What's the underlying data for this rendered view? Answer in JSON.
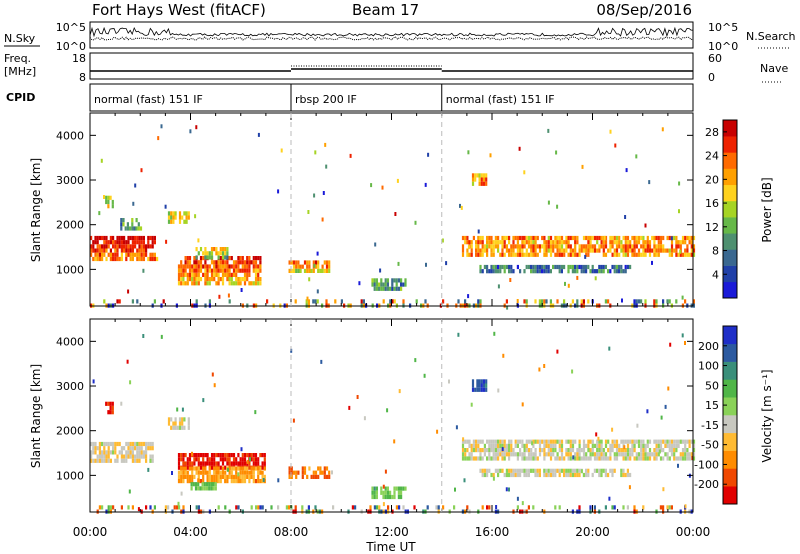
{
  "header": {
    "station": "Fort Hays West (fitACF)",
    "beam": "Beam 17",
    "date": "08/Sep/2016"
  },
  "noise_panel": {
    "left_label": "N.Sky",
    "right_label": "N.Search",
    "left_ticks": [
      "10^5",
      "10^0"
    ],
    "right_ticks": [
      "10^5",
      "10^0"
    ]
  },
  "freq_panel": {
    "left_label_1": "Freq.",
    "left_label_2": "[MHz]",
    "right_label": "Nave",
    "left_ticks": [
      "18",
      "8"
    ],
    "right_ticks": [
      "60",
      "0"
    ]
  },
  "cpid_panel": {
    "label": "CPID",
    "segments": [
      {
        "name": "normal (fast) 151 IF",
        "start_hour": 0,
        "end_hour": 8
      },
      {
        "name": "rbsp 200 IF",
        "start_hour": 8,
        "end_hour": 14
      },
      {
        "name": "normal (fast) 151 IF",
        "start_hour": 14,
        "end_hour": 24
      }
    ]
  },
  "chart_data": [
    {
      "type": "heatmap",
      "name": "power",
      "ylabel": "Slant Range [km]",
      "xlabel": "",
      "ylim": [
        180,
        4500
      ],
      "yticks": [
        "1000",
        "2000",
        "3000",
        "4000"
      ],
      "xlim_hours": [
        0,
        24
      ],
      "colorbar_label": "Power [dB]",
      "colorbar_ticks": [
        "4",
        "8",
        "12",
        "16",
        "20",
        "24",
        "28"
      ],
      "colorbar_range": [
        0,
        30
      ],
      "colors": [
        "#1a1ad8",
        "#2040a8",
        "#3a6890",
        "#4e9070",
        "#66b848",
        "#a6d424",
        "#ffd21e",
        "#ffa000",
        "#ff6a00",
        "#ee2200",
        "#c80000"
      ],
      "echo_regions": [
        {
          "t0": 0.0,
          "t1": 2.7,
          "r0": 1250,
          "r1": 1750,
          "level": 0.85
        },
        {
          "t0": 0.6,
          "t1": 0.9,
          "r0": 2450,
          "r1": 2650,
          "level": 0.55
        },
        {
          "t0": 1.2,
          "t1": 2.0,
          "r0": 1950,
          "r1": 2150,
          "level": 0.35
        },
        {
          "t0": 3.1,
          "t1": 3.9,
          "r0": 2050,
          "r1": 2300,
          "level": 0.55
        },
        {
          "t0": 3.5,
          "t1": 6.8,
          "r0": 700,
          "r1": 1300,
          "level": 0.75
        },
        {
          "t0": 4.2,
          "t1": 5.5,
          "r0": 1300,
          "r1": 1500,
          "level": 0.5
        },
        {
          "t0": 7.9,
          "t1": 9.5,
          "r0": 950,
          "r1": 1200,
          "level": 0.65
        },
        {
          "t0": 11.2,
          "t1": 12.6,
          "r0": 600,
          "r1": 800,
          "level": 0.3
        },
        {
          "t0": 15.2,
          "t1": 15.8,
          "r0": 2950,
          "r1": 3150,
          "level": 0.7
        },
        {
          "t0": 14.8,
          "t1": 24.0,
          "r0": 1350,
          "r1": 1750,
          "level": 0.7
        },
        {
          "t0": 15.5,
          "t1": 21.5,
          "r0": 1000,
          "r1": 1100,
          "level": 0.25
        },
        {
          "t0": 0.0,
          "t1": 24.0,
          "r0": 190,
          "r1": 330,
          "level": 0.5
        }
      ]
    },
    {
      "type": "heatmap",
      "name": "velocity",
      "ylabel": "Slant Range [km]",
      "xlabel": "Time UT",
      "ylim": [
        180,
        4500
      ],
      "yticks": [
        "1000",
        "2000",
        "3000",
        "4000"
      ],
      "xticks": [
        "00:00",
        "04:00",
        "08:00",
        "12:00",
        "16:00",
        "20:00",
        "00:00"
      ],
      "xlim_hours": [
        0,
        24
      ],
      "colorbar_label": "Velocity [m s⁻¹]",
      "colorbar_ticks": [
        "200",
        "100",
        "50",
        "15",
        "-15",
        "-50",
        "-100",
        "-200"
      ],
      "colors": [
        "#e10000",
        "#f04800",
        "#ff8c00",
        "#ffbb33",
        "#c8c8c0",
        "#8ad258",
        "#50b648",
        "#3a8f7a",
        "#2c5aa0",
        "#1f2fc8"
      ],
      "echo_regions": [
        {
          "t0": 0.0,
          "t1": 2.5,
          "r0": 1350,
          "r1": 1750,
          "level": 0.42
        },
        {
          "t0": 0.6,
          "t1": 0.9,
          "r0": 2450,
          "r1": 2650,
          "level": 0.08
        },
        {
          "t0": 3.1,
          "t1": 3.9,
          "r0": 2050,
          "r1": 2300,
          "level": 0.42
        },
        {
          "t0": 3.5,
          "t1": 7.0,
          "r0": 1200,
          "r1": 1500,
          "level": 0.05
        },
        {
          "t0": 3.5,
          "t1": 7.0,
          "r0": 850,
          "r1": 1200,
          "level": 0.28
        },
        {
          "t0": 4.0,
          "t1": 5.0,
          "r0": 700,
          "r1": 850,
          "level": 0.6
        },
        {
          "t0": 7.9,
          "t1": 9.5,
          "r0": 950,
          "r1": 1200,
          "level": 0.22
        },
        {
          "t0": 11.2,
          "t1": 12.6,
          "r0": 550,
          "r1": 750,
          "level": 0.62
        },
        {
          "t0": 15.2,
          "t1": 15.8,
          "r0": 2950,
          "r1": 3150,
          "level": 0.88
        },
        {
          "t0": 14.8,
          "t1": 24.0,
          "r0": 1400,
          "r1": 1800,
          "level": 0.45
        },
        {
          "t0": 15.5,
          "t1": 21.5,
          "r0": 1000,
          "r1": 1150,
          "level": 0.45
        },
        {
          "t0": 0.0,
          "t1": 24.0,
          "r0": 190,
          "r1": 330,
          "level": 0.6
        }
      ]
    }
  ]
}
